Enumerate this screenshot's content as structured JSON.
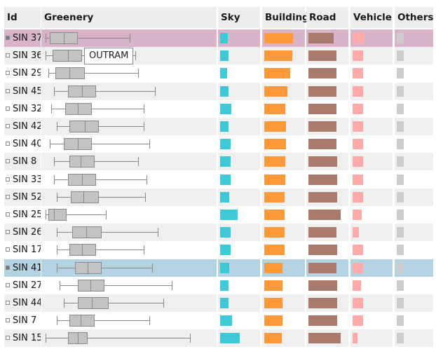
{
  "headers": [
    "Id",
    "Greenery",
    "Sky",
    "Building",
    "Road",
    "Vehicle",
    "Others"
  ],
  "tooltip": "OUTRAM",
  "colors": {
    "sky": "#3fc8d6",
    "building": "#ff9a3c",
    "road": "#a87a6e",
    "vehicle": "#ffaaaa",
    "others": "#cccccc",
    "row_alt": "#efefef",
    "highlight_pink": "#d8b4c8",
    "highlight_blue": "#b4d2e0"
  },
  "rows": [
    {
      "id": "SIN 37",
      "checked": true,
      "highlight": "pink",
      "greenery": {
        "min": 0.02,
        "q1": 0.05,
        "median": 0.15,
        "q3": 0.25,
        "max": 0.62
      },
      "sky": 0.2,
      "building": 0.72,
      "road": 0.65,
      "vehicle": 0.3,
      "others": 0.2
    },
    {
      "id": "SIN 36",
      "checked": false,
      "highlight": "",
      "greenery": {
        "min": 0.02,
        "q1": 0.07,
        "median": 0.18,
        "q3": 0.28,
        "max": 0.66
      },
      "sky": 0.22,
      "building": 0.7,
      "road": 0.72,
      "vehicle": 0.26,
      "others": 0.2
    },
    {
      "id": "SIN 29",
      "checked": false,
      "highlight": "",
      "greenery": {
        "min": 0.04,
        "q1": 0.09,
        "median": 0.19,
        "q3": 0.3,
        "max": 0.68
      },
      "sky": 0.18,
      "building": 0.65,
      "road": 0.72,
      "vehicle": 0.26,
      "others": 0.2
    },
    {
      "id": "SIN 45",
      "checked": false,
      "highlight": "",
      "greenery": {
        "min": 0.08,
        "q1": 0.18,
        "median": 0.28,
        "q3": 0.38,
        "max": 0.8
      },
      "sky": 0.22,
      "building": 0.58,
      "road": 0.72,
      "vehicle": 0.26,
      "others": 0.2
    },
    {
      "id": "SIN 32",
      "checked": false,
      "highlight": "",
      "greenery": {
        "min": 0.06,
        "q1": 0.16,
        "median": 0.25,
        "q3": 0.35,
        "max": 0.72
      },
      "sky": 0.28,
      "building": 0.52,
      "road": 0.72,
      "vehicle": 0.26,
      "others": 0.2
    },
    {
      "id": "SIN 42",
      "checked": false,
      "highlight": "",
      "greenery": {
        "min": 0.1,
        "q1": 0.19,
        "median": 0.3,
        "q3": 0.4,
        "max": 0.72
      },
      "sky": 0.22,
      "building": 0.55,
      "road": 0.72,
      "vehicle": 0.26,
      "others": 0.2
    },
    {
      "id": "SIN 40",
      "checked": false,
      "highlight": "",
      "greenery": {
        "min": 0.05,
        "q1": 0.15,
        "median": 0.25,
        "q3": 0.35,
        "max": 0.76
      },
      "sky": 0.26,
      "building": 0.55,
      "road": 0.72,
      "vehicle": 0.26,
      "others": 0.2
    },
    {
      "id": "SIN 8",
      "checked": false,
      "highlight": "",
      "greenery": {
        "min": 0.08,
        "q1": 0.19,
        "median": 0.27,
        "q3": 0.37,
        "max": 0.68
      },
      "sky": 0.26,
      "building": 0.52,
      "road": 0.74,
      "vehicle": 0.26,
      "others": 0.2
    },
    {
      "id": "SIN 33",
      "checked": false,
      "highlight": "",
      "greenery": {
        "min": 0.08,
        "q1": 0.18,
        "median": 0.28,
        "q3": 0.38,
        "max": 0.74
      },
      "sky": 0.26,
      "building": 0.52,
      "road": 0.74,
      "vehicle": 0.26,
      "others": 0.2
    },
    {
      "id": "SIN 52",
      "checked": false,
      "highlight": "",
      "greenery": {
        "min": 0.1,
        "q1": 0.2,
        "median": 0.29,
        "q3": 0.4,
        "max": 0.73
      },
      "sky": 0.24,
      "building": 0.5,
      "road": 0.74,
      "vehicle": 0.26,
      "others": 0.2
    },
    {
      "id": "SIN 25",
      "checked": false,
      "highlight": "",
      "greenery": {
        "min": 0.02,
        "q1": 0.04,
        "median": 0.08,
        "q3": 0.17,
        "max": 0.45
      },
      "sky": 0.44,
      "building": 0.5,
      "road": 0.82,
      "vehicle": 0.24,
      "others": 0.2
    },
    {
      "id": "SIN 26",
      "checked": false,
      "highlight": "",
      "greenery": {
        "min": 0.1,
        "q1": 0.21,
        "median": 0.31,
        "q3": 0.42,
        "max": 0.82
      },
      "sky": 0.26,
      "building": 0.5,
      "road": 0.72,
      "vehicle": 0.16,
      "others": 0.2
    },
    {
      "id": "SIN 17",
      "checked": false,
      "highlight": "",
      "greenery": {
        "min": 0.1,
        "q1": 0.19,
        "median": 0.28,
        "q3": 0.38,
        "max": 0.72
      },
      "sky": 0.26,
      "building": 0.5,
      "road": 0.74,
      "vehicle": 0.26,
      "others": 0.2
    },
    {
      "id": "SIN 41",
      "checked": true,
      "highlight": "blue",
      "greenery": {
        "min": 0.1,
        "q1": 0.23,
        "median": 0.32,
        "q3": 0.42,
        "max": 0.78
      },
      "sky": 0.24,
      "building": 0.46,
      "road": 0.72,
      "vehicle": 0.26,
      "others": 0.2
    },
    {
      "id": "SIN 27",
      "checked": false,
      "highlight": "",
      "greenery": {
        "min": 0.12,
        "q1": 0.25,
        "median": 0.34,
        "q3": 0.44,
        "max": 0.92
      },
      "sky": 0.22,
      "building": 0.46,
      "road": 0.74,
      "vehicle": 0.22,
      "others": 0.2
    },
    {
      "id": "SIN 44",
      "checked": false,
      "highlight": "",
      "greenery": {
        "min": 0.15,
        "q1": 0.25,
        "median": 0.35,
        "q3": 0.47,
        "max": 0.86
      },
      "sky": 0.22,
      "building": 0.46,
      "road": 0.74,
      "vehicle": 0.26,
      "others": 0.2
    },
    {
      "id": "SIN 7",
      "checked": false,
      "highlight": "",
      "greenery": {
        "min": 0.1,
        "q1": 0.19,
        "median": 0.27,
        "q3": 0.37,
        "max": 0.76
      },
      "sky": 0.3,
      "building": 0.46,
      "road": 0.74,
      "vehicle": 0.26,
      "others": 0.2
    },
    {
      "id": "SIN 15",
      "checked": false,
      "highlight": "",
      "greenery": {
        "min": 0.02,
        "q1": 0.18,
        "median": 0.25,
        "q3": 0.32,
        "max": 1.05
      },
      "sky": 0.5,
      "building": 0.44,
      "road": 0.82,
      "vehicle": 0.12,
      "others": 0.2
    }
  ]
}
